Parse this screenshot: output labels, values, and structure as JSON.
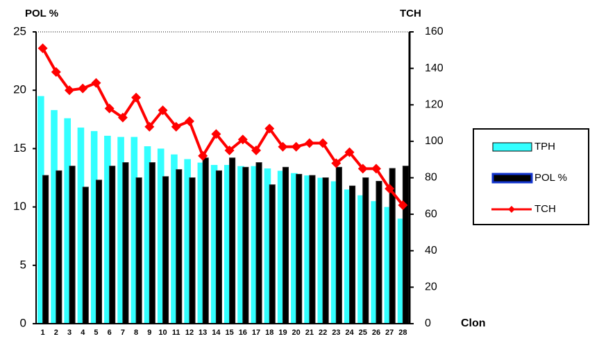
{
  "chart_data": {
    "type": "bar_line",
    "y_label": "POL %",
    "y2_label": "TCH",
    "x_label": "Clon",
    "categories": [
      "1",
      "2",
      "3",
      "4",
      "5",
      "6",
      "7",
      "8",
      "9",
      "10",
      "11",
      "12",
      "13",
      "14",
      "15",
      "16",
      "17",
      "18",
      "19",
      "20",
      "21",
      "22",
      "23",
      "24",
      "25",
      "26",
      "27",
      "28"
    ],
    "series": [
      {
        "name": "TPH",
        "type": "bar",
        "color": "#33ffff",
        "values": [
          19.5,
          18.3,
          17.6,
          16.8,
          16.5,
          16.1,
          16.0,
          16.0,
          15.2,
          15.0,
          14.5,
          14.1,
          13.8,
          13.6,
          13.6,
          13.5,
          13.5,
          13.3,
          13.1,
          12.9,
          12.7,
          12.5,
          12.2,
          11.5,
          11.0,
          10.5,
          10.0,
          9.0
        ]
      },
      {
        "name": "POL %",
        "type": "bar",
        "color": "#000000",
        "values": [
          12.7,
          13.1,
          13.5,
          11.7,
          12.3,
          13.5,
          13.8,
          12.5,
          13.8,
          12.6,
          13.2,
          12.5,
          14.2,
          13.1,
          14.2,
          13.4,
          13.8,
          11.9,
          13.4,
          12.8,
          12.7,
          12.5,
          13.4,
          11.8,
          12.5,
          12.2,
          13.3,
          13.5
        ]
      },
      {
        "name": "TCH",
        "type": "line",
        "axis": "y2",
        "color": "#ff0000",
        "values": [
          151,
          138,
          128,
          129,
          132,
          118,
          113,
          124,
          108,
          117,
          108,
          111,
          92,
          104,
          95,
          101,
          95,
          107,
          97,
          97,
          99,
          99,
          88,
          94,
          85,
          85,
          74,
          65
        ]
      }
    ],
    "ylim": [
      0,
      25
    ],
    "yticks": [
      0,
      5,
      10,
      15,
      20,
      25
    ],
    "y2lim": [
      0,
      160
    ],
    "y2ticks": [
      0,
      20,
      40,
      60,
      80,
      100,
      120,
      140,
      160
    ],
    "grid": false,
    "legend": "right"
  }
}
